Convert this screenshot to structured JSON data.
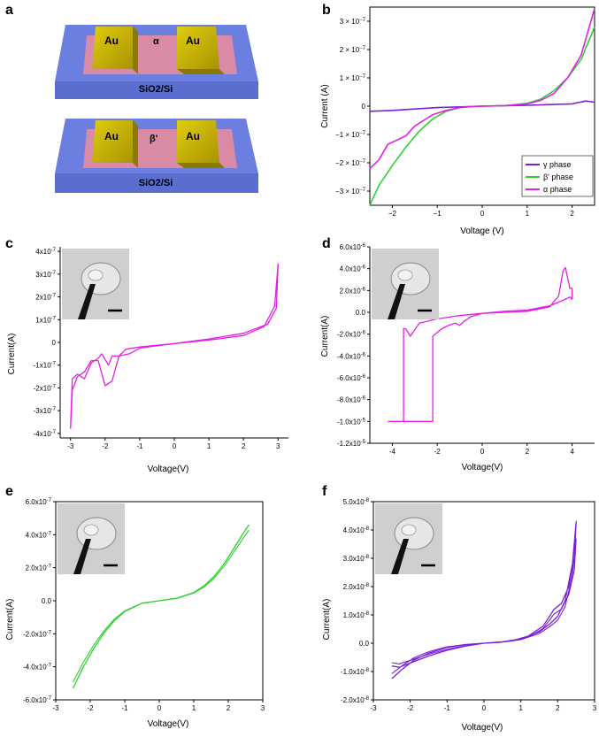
{
  "panel_labels": {
    "a": "a",
    "b": "b",
    "c": "c",
    "d": "d",
    "e": "e",
    "f": "f"
  },
  "device_a": {
    "electrode_left": "Au",
    "electrode_right": "Au",
    "phase": "α",
    "substrate": "SiO2/Si"
  },
  "device_b": {
    "electrode_left": "Au",
    "electrode_right": "Au",
    "phase": "β'",
    "substrate": "SiO2/Si"
  },
  "colors": {
    "gamma": "#7b1fd6",
    "beta": "#2fd02f",
    "alpha": "#e61ee6",
    "gold": "#c8b400",
    "pink": "#d98aa6",
    "blue": "#6b7fe0"
  },
  "chart_data": [
    {
      "id": "b",
      "type": "line",
      "xlabel": "Voltage (V)",
      "ylabel": "Current (A)",
      "xlim": [
        -2.5,
        2.5
      ],
      "ylim": [
        -3.5e-07,
        3.5e-07
      ],
      "xticks": [
        -2,
        -1,
        0,
        1,
        2
      ],
      "xtick_labels": [
        "−2",
        "−1",
        "0",
        "1",
        "2"
      ],
      "yticks": [
        -3e-07,
        -2e-07,
        -1e-07,
        0,
        1e-07,
        2e-07,
        3e-07
      ],
      "ytick_labels": [
        "−3 × 10^−7",
        "−2 × 10^−7",
        "−1 × 10^−7",
        "0",
        "1 × 10^−7",
        "2 × 10^−7",
        "3 × 10^−7"
      ],
      "legend": [
        "γ phase",
        "β' phase",
        "α phase"
      ],
      "series": [
        {
          "name": "γ phase",
          "color": "#7b1fd6",
          "x": [
            -2.5,
            -2,
            -1,
            0,
            1,
            2,
            2.3,
            2.5
          ],
          "y": [
            -1.8e-08,
            -1.5e-08,
            -5e-09,
            0,
            3e-09,
            8e-09,
            1.8e-08,
            1.4e-08
          ]
        },
        {
          "name": "β' phase",
          "color": "#2fd02f",
          "x": [
            -2.5,
            -2.3,
            -2.0,
            -1.7,
            -1.4,
            -1.1,
            -0.8,
            -0.5,
            -0.2,
            0,
            0.5,
            1.0,
            1.3,
            1.6,
            1.9,
            2.2,
            2.5
          ],
          "y": [
            -3.5e-07,
            -2.8e-07,
            -2.1e-07,
            -1.45e-07,
            -8.8e-08,
            -4.5e-08,
            -1.8e-08,
            -5e-09,
            -1e-09,
            0,
            2e-09,
            1e-08,
            2.5e-08,
            5.5e-08,
            1e-07,
            1.65e-07,
            2.8e-07
          ]
        },
        {
          "name": "α phase",
          "color": "#e61ee6",
          "x": [
            -2.5,
            -2.3,
            -2.1,
            -1.9,
            -1.7,
            -1.5,
            -1.3,
            -1.1,
            -0.8,
            -0.5,
            -0.2,
            0,
            0.5,
            1.0,
            1.3,
            1.6,
            1.9,
            2.2,
            2.5
          ],
          "y": [
            -2.2e-07,
            -1.9e-07,
            -1.35e-07,
            -1.2e-07,
            -1.05e-07,
            -7e-08,
            -5e-08,
            -3e-08,
            -1.5e-08,
            -5e-09,
            -1e-09,
            0,
            2e-09,
            8e-09,
            2e-08,
            4.5e-08,
            1e-07,
            1.8e-07,
            3.45e-07
          ]
        }
      ]
    },
    {
      "id": "c",
      "type": "line",
      "xlabel": "Voltage(V)",
      "ylabel": "Current(A)",
      "xlim": [
        -3.3,
        3.3
      ],
      "ylim": [
        -4.2e-07,
        4.2e-07
      ],
      "xticks": [
        -3,
        -2,
        -1,
        0,
        1,
        2,
        3
      ],
      "xtick_labels": [
        "-3",
        "-2",
        "-1",
        "0",
        "1",
        "2",
        "3"
      ],
      "yticks": [
        -4e-07,
        -3e-07,
        -2e-07,
        -1e-07,
        0,
        1e-07,
        2e-07,
        3e-07,
        4e-07
      ],
      "ytick_labels": [
        "-4x10^-7",
        "-3x10^-7",
        "-2x10^-7",
        "-1x10^-7",
        "0",
        "1x10^-7",
        "2x10^-7",
        "3x10^-7",
        "4x10^-7"
      ],
      "series": [
        {
          "name": "α phase",
          "color": "#e61ee6",
          "x": [
            -3,
            -2.95,
            -2.8,
            -2.6,
            -2.4,
            -2.2,
            -2.0,
            -1.8,
            -1.6,
            -1.3,
            -1.0,
            0,
            1,
            2.0,
            2.6,
            2.9,
            3.0,
            2.95,
            2.7,
            2.0,
            1,
            0,
            -1.0,
            -1.4,
            -1.6,
            -1.8,
            -1.9,
            -2.1,
            -2.2,
            -2.4,
            -2.6,
            -2.8,
            -2.95,
            -3.0
          ],
          "y": [
            -3.8e-07,
            -2.1e-07,
            -1.5e-07,
            -1.3e-07,
            -8e-08,
            -8e-08,
            -1.9e-07,
            -1.7e-07,
            -6e-08,
            -5e-08,
            -2.5e-08,
            -5e-09,
            1e-08,
            3e-08,
            7e-08,
            1.6e-07,
            3.45e-07,
            1.5e-07,
            8e-08,
            4e-08,
            1.5e-08,
            -5e-09,
            -2e-08,
            -3e-08,
            -6e-08,
            -6e-08,
            -1e-07,
            -5e-08,
            -7e-08,
            -9e-08,
            -1.6e-07,
            -1.4e-07,
            -1.6e-07,
            -3.8e-07
          ]
        }
      ]
    },
    {
      "id": "d",
      "type": "line",
      "xlabel": "Voltage(V)",
      "ylabel": "Current(A)",
      "xlim": [
        -5,
        5
      ],
      "ylim": [
        -1.2e-05,
        6e-06
      ],
      "xticks": [
        -4,
        -2,
        0,
        2,
        4
      ],
      "xtick_labels": [
        "-4",
        "-2",
        "0",
        "2",
        "4"
      ],
      "yticks": [
        -1.2e-05,
        -1e-05,
        -8e-06,
        -6e-06,
        -4e-06,
        -2e-06,
        0,
        2e-06,
        4e-06,
        6e-06
      ],
      "ytick_labels": [
        "-1.2x10^-5",
        "-1.0x10^-5",
        "-8.0x10^-6",
        "-6.0x10^-6",
        "-4.0x10^-6",
        "-2.0x10^-6",
        "0.0",
        "2.0x10^-6",
        "4.0x10^-6",
        "6.0x10^-6"
      ],
      "series": [
        {
          "name": "α phase",
          "color": "#e61ee6",
          "x": [
            -4.2,
            -2.2,
            -2.2,
            -1.8,
            -1.5,
            -1.2,
            -1.0,
            -0.8,
            -0.5,
            0,
            1,
            2,
            3,
            3.4,
            3.6,
            3.7,
            3.9,
            4.0,
            4.0,
            3.9,
            3.6,
            3.0,
            2,
            1,
            0,
            -1,
            -2,
            -2.8,
            -3.2,
            -3.4,
            -3.5,
            -3.5,
            -4.2
          ],
          "y": [
            -1e-05,
            -1e-05,
            -2.2e-06,
            -1.5e-06,
            -1.2e-06,
            -1e-06,
            -1.2e-06,
            -8e-07,
            -4e-07,
            -1e-07,
            0,
            1e-07,
            5e-07,
            1.5e-06,
            3.8e-06,
            4.1e-06,
            2.2e-06,
            2.2e-06,
            1.2e-06,
            1.4e-06,
            1.1e-06,
            6e-07,
            2e-07,
            1e-07,
            -1e-07,
            -3e-07,
            -6e-07,
            -1e-06,
            -2.2e-06,
            -1.5e-06,
            -1.5e-06,
            -1e-05,
            -1e-05
          ]
        }
      ]
    },
    {
      "id": "e",
      "type": "line",
      "xlabel": "Voltage(V)",
      "ylabel": "Current(A)",
      "xlim": [
        -3,
        3
      ],
      "ylim": [
        -6e-07,
        6e-07
      ],
      "xticks": [
        -3,
        -2,
        -1,
        0,
        1,
        2,
        3
      ],
      "xtick_labels": [
        "-3",
        "-2",
        "-1",
        "0",
        "1",
        "2",
        "3"
      ],
      "yticks": [
        -6e-07,
        -4e-07,
        -2e-07,
        0,
        2e-07,
        4e-07,
        6e-07
      ],
      "ytick_labels": [
        "-6.0x10^-7",
        "-4.0x10^-7",
        "-2.0x10^-7",
        "0.0",
        "2.0x10^-7",
        "4.0x10^-7",
        "6.0x10^-7"
      ],
      "series": [
        {
          "name": "β' phase",
          "color": "#2fd02f",
          "x": [
            -2.5,
            -2.2,
            -1.9,
            -1.6,
            -1.3,
            -1,
            -0.5,
            0,
            0.5,
            1,
            1.3,
            1.6,
            1.9,
            2.2,
            2.5,
            2.6
          ],
          "y": [
            -5.3e-07,
            -4e-07,
            -2.9e-07,
            -1.95e-07,
            -1.2e-07,
            -6.5e-08,
            -1.5e-08,
            0,
            1.5e-08,
            5e-08,
            9e-08,
            1.5e-07,
            2.3e-07,
            3.3e-07,
            4.3e-07,
            4.6e-07
          ]
        }
      ]
    },
    {
      "id": "f",
      "type": "line",
      "xlabel": "Voltage(V)",
      "ylabel": "Current(A)",
      "xlim": [
        -3,
        3
      ],
      "ylim": [
        -2e-08,
        5e-08
      ],
      "xticks": [
        -3,
        -2,
        -1,
        0,
        1,
        2,
        3
      ],
      "xtick_labels": [
        "-3",
        "-2",
        "-1",
        "0",
        "1",
        "2",
        "3"
      ],
      "yticks": [
        -2e-08,
        -1e-08,
        0,
        1e-08,
        2e-08,
        3e-08,
        4e-08,
        5e-08
      ],
      "ytick_labels": [
        "-2.0x10^-8",
        "-1.0x10^-8",
        "0.0",
        "1.0x10^-8",
        "2.0x10^-8",
        "3.0x10^-8",
        "4.0x10^-8",
        "5.0x10^-8"
      ],
      "series": [
        {
          "name": "γ phase",
          "color": "#7b1fd6",
          "x": [
            -2.5,
            -2.2,
            -1.9,
            -1.5,
            -1,
            -0.5,
            0,
            0.5,
            1,
            1.5,
            1.8,
            2.0,
            2.2,
            2.4,
            2.5,
            2.45,
            2.3,
            2.1,
            1.9,
            1.6,
            1.2,
            0.8,
            0.4,
            0,
            -0.5,
            -1,
            -1.5,
            -2,
            -2.3,
            -2.5
          ],
          "y": [
            -1.25e-08,
            -9e-09,
            -6e-09,
            -3.5e-09,
            -1.5e-09,
            -5e-10,
            0,
            5e-10,
            1.5e-09,
            4e-09,
            7e-09,
            9.5e-09,
            1.5e-08,
            2.8e-08,
            4.3e-08,
            3e-08,
            2e-08,
            1.4e-08,
            1.2e-08,
            6e-09,
            2.5e-09,
            1e-09,
            3e-10,
            0,
            -1e-09,
            -2.5e-09,
            -4.5e-09,
            -7e-09,
            -8.5e-09,
            -8e-09
          ]
        }
      ]
    }
  ]
}
